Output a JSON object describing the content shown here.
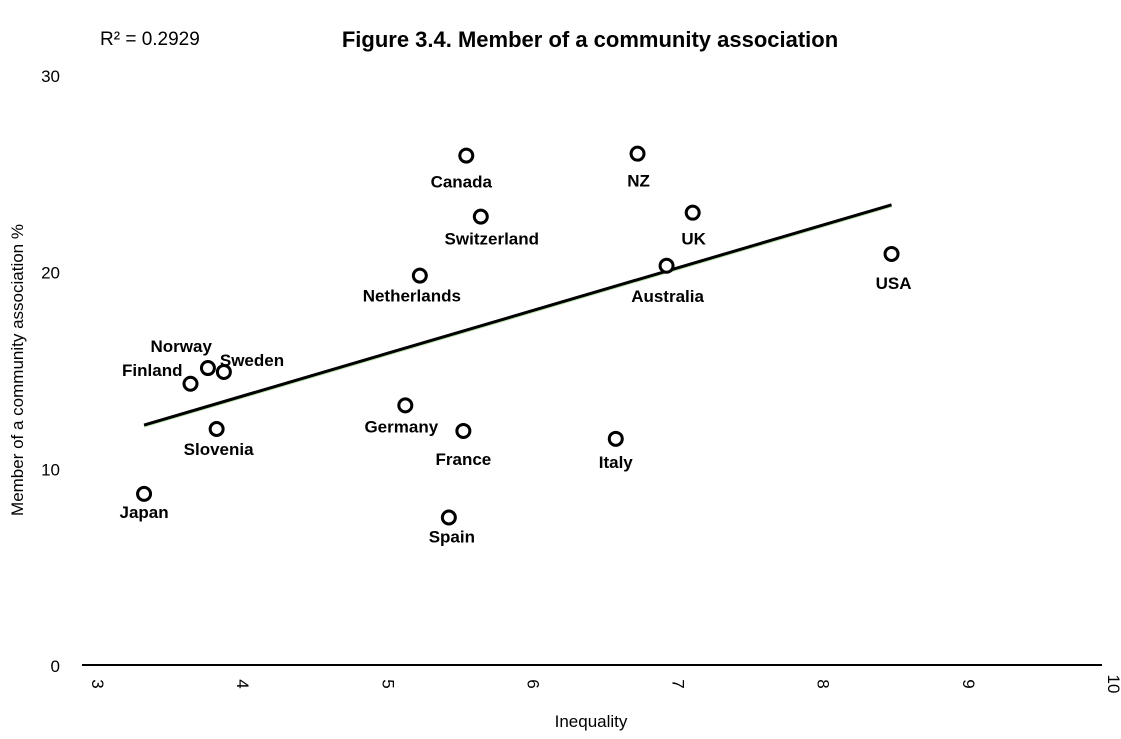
{
  "chart_data": {
    "type": "scatter",
    "title": "Figure 3.4. Member of a community association",
    "annotation": "R² = 0.2929",
    "xlabel": "Inequality",
    "ylabel": "Member of a community association %",
    "xlim": [
      3,
      10
    ],
    "ylim": [
      0,
      30
    ],
    "x_ticks": [
      "3",
      "4",
      "5",
      "6",
      "7",
      "8",
      "9",
      "10"
    ],
    "y_ticks": [
      "0",
      "10",
      "20",
      "30"
    ],
    "grid": false,
    "points": [
      {
        "label": "Japan",
        "x": 3.4,
        "y": 8.7
      },
      {
        "label": "Finland",
        "x": 3.72,
        "y": 14.3
      },
      {
        "label": "Norway",
        "x": 3.84,
        "y": 15.1
      },
      {
        "label": "Sweden",
        "x": 3.95,
        "y": 14.9
      },
      {
        "label": "Slovenia",
        "x": 3.9,
        "y": 12.0
      },
      {
        "label": "Germany",
        "x": 5.2,
        "y": 13.2
      },
      {
        "label": "Netherlands",
        "x": 5.3,
        "y": 19.8
      },
      {
        "label": "Spain",
        "x": 5.5,
        "y": 7.5
      },
      {
        "label": "France",
        "x": 5.6,
        "y": 11.9
      },
      {
        "label": "Canada",
        "x": 5.62,
        "y": 25.9
      },
      {
        "label": "Switzerland",
        "x": 5.72,
        "y": 22.8
      },
      {
        "label": "Italy",
        "x": 6.65,
        "y": 11.5
      },
      {
        "label": "NZ",
        "x": 6.8,
        "y": 26.0
      },
      {
        "label": "Australia",
        "x": 7.0,
        "y": 20.3
      },
      {
        "label": "UK",
        "x": 7.18,
        "y": 23.0
      },
      {
        "label": "USA",
        "x": 8.55,
        "y": 20.9
      }
    ],
    "trendline": {
      "x": [
        3.4,
        8.55
      ],
      "y": [
        12.2,
        23.4
      ]
    }
  }
}
